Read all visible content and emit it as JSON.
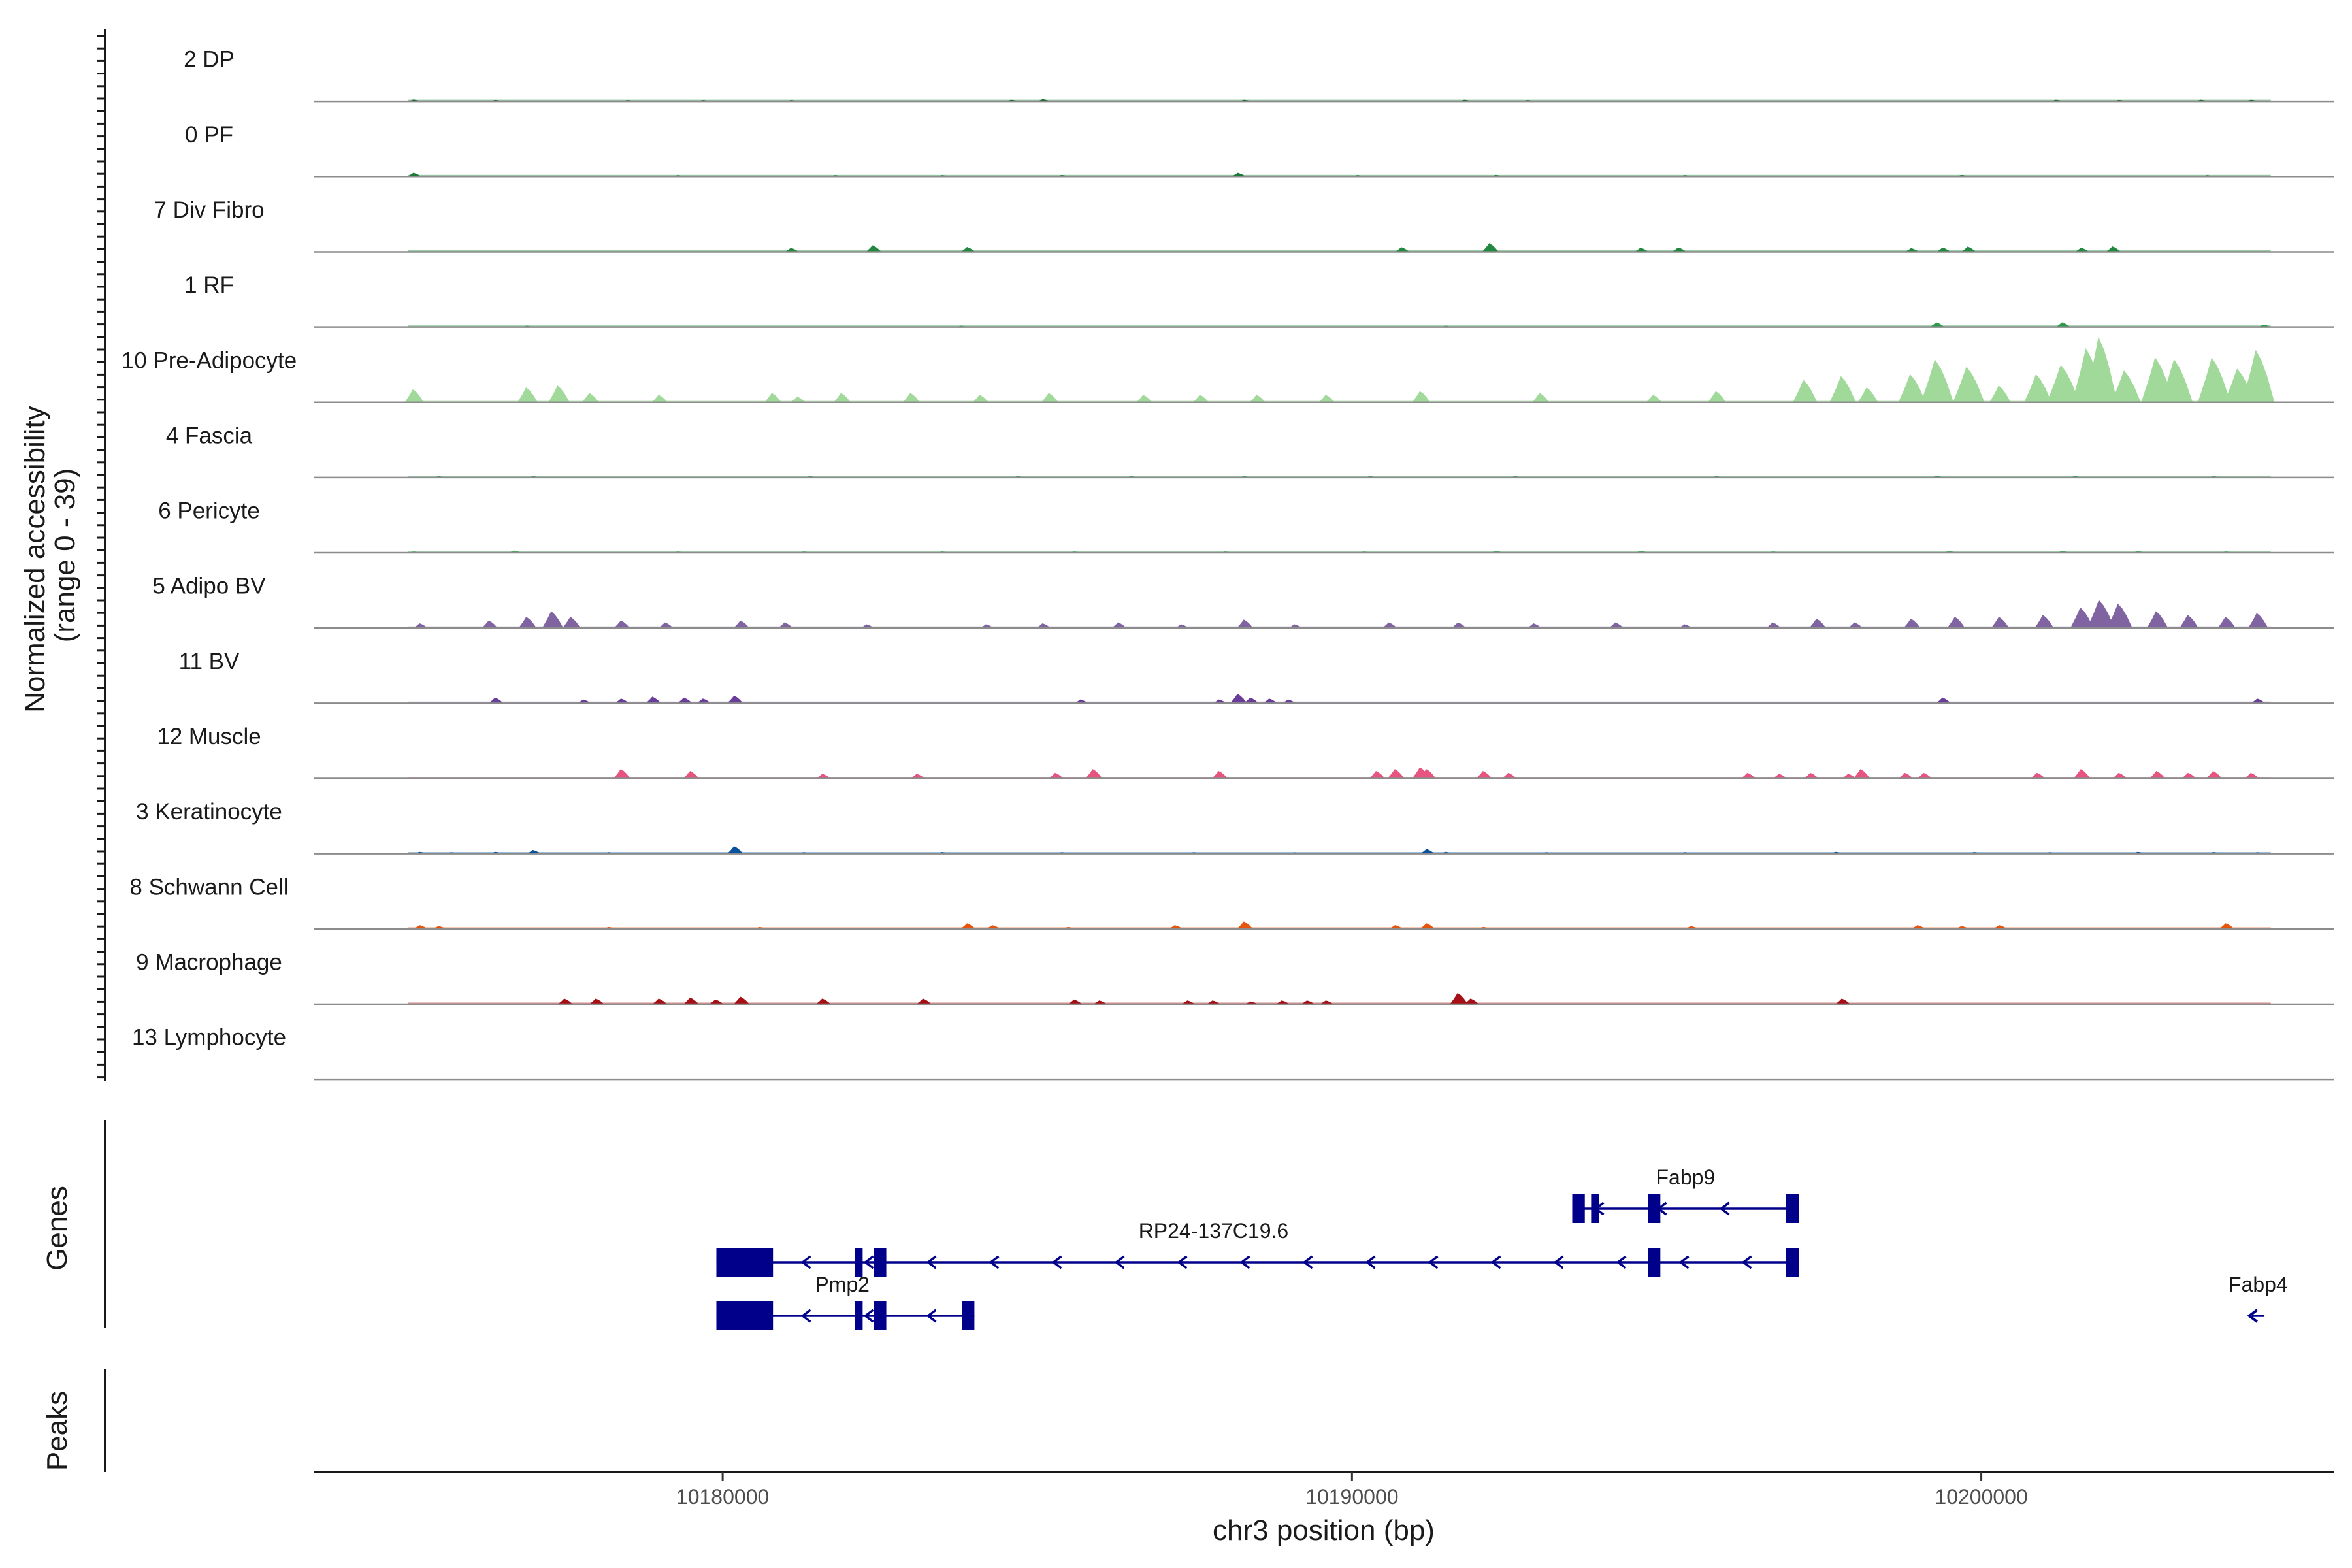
{
  "chart_data": {
    "type": "area",
    "title": "",
    "ylabel": "Normalized accessibility\n(range 0 - 39)",
    "y_range": [
      0,
      39
    ],
    "xlabel": "chr3 position (bp)",
    "x_range": [
      10173500,
      10205600
    ],
    "x_ticks": [
      10180000,
      10190000,
      10200000
    ],
    "x_tick_labels": [
      "10180000",
      "10190000",
      "10200000"
    ],
    "coverage_x_range": [
      10175000,
      10204600
    ],
    "series": [
      {
        "name": "2 DP",
        "color": "#1b6b2f",
        "peaks": [
          [
            10175100,
            1.0
          ],
          [
            10176400,
            0.8
          ],
          [
            10178500,
            0.6
          ],
          [
            10179700,
            0.6
          ],
          [
            10181100,
            0.5
          ],
          [
            10184600,
            0.9
          ],
          [
            10185100,
            1.2
          ],
          [
            10188300,
            0.9
          ],
          [
            10191800,
            0.9
          ],
          [
            10192800,
            0.6
          ],
          [
            10201200,
            0.9
          ],
          [
            10202200,
            0.8
          ],
          [
            10203500,
            0.9
          ],
          [
            10204300,
            0.9
          ]
        ]
      },
      {
        "name": "0 PF",
        "color": "#1f7a3a",
        "peaks": [
          [
            10175100,
            2.0
          ],
          [
            10179300,
            0.6
          ],
          [
            10181800,
            0.7
          ],
          [
            10183500,
            0.7
          ],
          [
            10185400,
            0.8
          ],
          [
            10188200,
            2.0
          ],
          [
            10190100,
            0.6
          ],
          [
            10192300,
            0.8
          ],
          [
            10195300,
            0.6
          ],
          [
            10199700,
            0.8
          ],
          [
            10203600,
            0.7
          ]
        ]
      },
      {
        "name": "7 Div Fibro",
        "color": "#23883f",
        "peaks": [
          [
            10181100,
            2.1
          ],
          [
            10182400,
            3.5
          ],
          [
            10183900,
            2.6
          ],
          [
            10190800,
            2.5
          ],
          [
            10192200,
            4.6
          ],
          [
            10194600,
            2.2
          ],
          [
            10195200,
            2.4
          ],
          [
            10198900,
            2.0
          ],
          [
            10199400,
            2.3
          ],
          [
            10199800,
            2.8
          ],
          [
            10201600,
            2.2
          ],
          [
            10202100,
            2.9
          ]
        ]
      },
      {
        "name": "1 RF",
        "color": "#2e9a4c",
        "peaks": [
          [
            10176900,
            0.6
          ],
          [
            10183800,
            0.5
          ],
          [
            10191500,
            0.6
          ],
          [
            10199300,
            2.5
          ],
          [
            10201300,
            2.5
          ],
          [
            10204500,
            1.3
          ]
        ]
      },
      {
        "name": "10 Pre-Adipocyte",
        "color": "#a1d99b",
        "peaks": [
          [
            10175100,
            7
          ],
          [
            10176900,
            8
          ],
          [
            10177400,
            9
          ],
          [
            10177900,
            5
          ],
          [
            10179000,
            4
          ],
          [
            10180800,
            5
          ],
          [
            10181200,
            3
          ],
          [
            10181900,
            5
          ],
          [
            10183000,
            5
          ],
          [
            10184100,
            4
          ],
          [
            10185200,
            5
          ],
          [
            10186700,
            4
          ],
          [
            10187600,
            4
          ],
          [
            10188500,
            4
          ],
          [
            10189600,
            4
          ],
          [
            10191100,
            6
          ],
          [
            10193000,
            5
          ],
          [
            10194800,
            4
          ],
          [
            10195800,
            6
          ],
          [
            10197200,
            12
          ],
          [
            10197800,
            14
          ],
          [
            10198200,
            8
          ],
          [
            10198900,
            15
          ],
          [
            10199300,
            23
          ],
          [
            10199800,
            19
          ],
          [
            10200300,
            9
          ],
          [
            10200900,
            15
          ],
          [
            10201300,
            20
          ],
          [
            10201700,
            29
          ],
          [
            10201900,
            35
          ],
          [
            10202300,
            17
          ],
          [
            10202800,
            24
          ],
          [
            10203100,
            23
          ],
          [
            10203700,
            24
          ],
          [
            10204100,
            18
          ],
          [
            10204400,
            28
          ]
        ]
      },
      {
        "name": "4 Fascia",
        "color": "#2a9450",
        "peaks": [
          [
            10175500,
            0.5
          ],
          [
            10177000,
            0.4
          ],
          [
            10181400,
            0.5
          ],
          [
            10184700,
            0.6
          ],
          [
            10186500,
            0.5
          ],
          [
            10188300,
            0.6
          ],
          [
            10190300,
            0.5
          ],
          [
            10192600,
            0.5
          ],
          [
            10195800,
            0.5
          ],
          [
            10199300,
            0.9
          ],
          [
            10201500,
            0.8
          ],
          [
            10203700,
            0.6
          ]
        ]
      },
      {
        "name": "6 Pericyte",
        "color": "#41ab5d",
        "peaks": [
          [
            10175100,
            0.5
          ],
          [
            10176700,
            1.2
          ],
          [
            10179300,
            0.5
          ],
          [
            10181300,
            0.6
          ],
          [
            10183500,
            0.6
          ],
          [
            10185600,
            0.5
          ],
          [
            10188000,
            0.6
          ],
          [
            10190200,
            0.6
          ],
          [
            10192300,
            1.0
          ],
          [
            10194600,
            1.1
          ],
          [
            10196700,
            0.7
          ],
          [
            10199500,
            1.0
          ],
          [
            10201300,
            1.0
          ],
          [
            10202500,
            0.9
          ],
          [
            10203900,
            0.7
          ]
        ]
      },
      {
        "name": "5 Adipo BV",
        "color": "#8064a2",
        "peaks": [
          [
            10175200,
            2.5
          ],
          [
            10176300,
            4
          ],
          [
            10176900,
            6
          ],
          [
            10177300,
            9
          ],
          [
            10177600,
            6
          ],
          [
            10178400,
            4
          ],
          [
            10179100,
            3
          ],
          [
            10180300,
            4
          ],
          [
            10181000,
            3
          ],
          [
            10182300,
            2
          ],
          [
            10184200,
            2
          ],
          [
            10185100,
            2.5
          ],
          [
            10186300,
            3
          ],
          [
            10187300,
            2
          ],
          [
            10188300,
            4.5
          ],
          [
            10189100,
            2
          ],
          [
            10190600,
            3
          ],
          [
            10191700,
            3
          ],
          [
            10192900,
            2.5
          ],
          [
            10194200,
            3
          ],
          [
            10195300,
            2
          ],
          [
            10196700,
            3
          ],
          [
            10197400,
            5
          ],
          [
            10198000,
            3
          ],
          [
            10198900,
            5
          ],
          [
            10199600,
            6
          ],
          [
            10200300,
            6
          ],
          [
            10201000,
            7
          ],
          [
            10201600,
            11
          ],
          [
            10201900,
            15
          ],
          [
            10202200,
            13
          ],
          [
            10202800,
            9
          ],
          [
            10203300,
            7
          ],
          [
            10203900,
            6
          ],
          [
            10204400,
            8
          ]
        ]
      },
      {
        "name": "11 BV",
        "color": "#6a3d9a",
        "peaks": [
          [
            10176400,
            3
          ],
          [
            10177800,
            2
          ],
          [
            10178400,
            2.5
          ],
          [
            10178900,
            3.5
          ],
          [
            10179400,
            3
          ],
          [
            10179700,
            2.5
          ],
          [
            10180200,
            4
          ],
          [
            10185700,
            2
          ],
          [
            10187900,
            2
          ],
          [
            10188200,
            5
          ],
          [
            10188400,
            3
          ],
          [
            10188700,
            2.5
          ],
          [
            10189000,
            2
          ],
          [
            10199400,
            3
          ],
          [
            10204400,
            2.5
          ]
        ]
      },
      {
        "name": "12 Muscle",
        "color": "#e75480",
        "peaks": [
          [
            10178400,
            5
          ],
          [
            10179500,
            4
          ],
          [
            10181600,
            2.5
          ],
          [
            10183100,
            2.5
          ],
          [
            10185300,
            3
          ],
          [
            10185900,
            5
          ],
          [
            10187900,
            4
          ],
          [
            10190400,
            4
          ],
          [
            10190700,
            5
          ],
          [
            10191100,
            6
          ],
          [
            10191200,
            5
          ],
          [
            10192100,
            4
          ],
          [
            10192500,
            3
          ],
          [
            10196300,
            3
          ],
          [
            10196800,
            2.5
          ],
          [
            10197300,
            3
          ],
          [
            10197900,
            2.5
          ],
          [
            10198100,
            5
          ],
          [
            10198800,
            3
          ],
          [
            10199100,
            3
          ],
          [
            10200900,
            3
          ],
          [
            10201600,
            5
          ],
          [
            10202200,
            3
          ],
          [
            10202800,
            4
          ],
          [
            10203300,
            3
          ],
          [
            10203700,
            4
          ],
          [
            10204300,
            3
          ]
        ]
      },
      {
        "name": "3 Keratinocyte",
        "color": "#08519c",
        "peaks": [
          [
            10175200,
            1
          ],
          [
            10175700,
            0.8
          ],
          [
            10176400,
            1
          ],
          [
            10177000,
            2
          ],
          [
            10178200,
            0.8
          ],
          [
            10180200,
            4
          ],
          [
            10181300,
            0.8
          ],
          [
            10183500,
            0.9
          ],
          [
            10185400,
            0.8
          ],
          [
            10187500,
            0.8
          ],
          [
            10189100,
            0.7
          ],
          [
            10191200,
            2.5
          ],
          [
            10191500,
            1
          ],
          [
            10193100,
            0.8
          ],
          [
            10195300,
            0.8
          ],
          [
            10197700,
            1
          ],
          [
            10199900,
            0.9
          ],
          [
            10201100,
            0.8
          ],
          [
            10202500,
            1
          ],
          [
            10203700,
            0.9
          ],
          [
            10204400,
            0.8
          ]
        ]
      },
      {
        "name": "8 Schwann Cell",
        "color": "#e6550d",
        "peaks": [
          [
            10175200,
            2
          ],
          [
            10175500,
            1.5
          ],
          [
            10178200,
            1
          ],
          [
            10180600,
            1
          ],
          [
            10183900,
            3
          ],
          [
            10184300,
            2
          ],
          [
            10185500,
            1
          ],
          [
            10187200,
            2
          ],
          [
            10188300,
            4
          ],
          [
            10190700,
            2
          ],
          [
            10191200,
            3
          ],
          [
            10192100,
            1
          ],
          [
            10195400,
            1.5
          ],
          [
            10199000,
            2
          ],
          [
            10199700,
            1.5
          ],
          [
            10200300,
            2
          ],
          [
            10203900,
            3
          ]
        ]
      },
      {
        "name": "9 Macrophage",
        "color": "#a50f15",
        "peaks": [
          [
            10177500,
            3
          ],
          [
            10178000,
            3
          ],
          [
            10179000,
            3
          ],
          [
            10179500,
            3.5
          ],
          [
            10179900,
            2.5
          ],
          [
            10180300,
            4
          ],
          [
            10181600,
            3
          ],
          [
            10183200,
            3
          ],
          [
            10185600,
            2.5
          ],
          [
            10186000,
            2
          ],
          [
            10187400,
            2
          ],
          [
            10187800,
            2
          ],
          [
            10188400,
            1.5
          ],
          [
            10188900,
            2
          ],
          [
            10189300,
            2
          ],
          [
            10189600,
            2
          ],
          [
            10191700,
            6
          ],
          [
            10191900,
            3
          ],
          [
            10197800,
            3
          ]
        ]
      },
      {
        "name": "13 Lymphocyte",
        "color": "#555555",
        "peaks": []
      }
    ],
    "genes_title": "Genes",
    "genes": [
      {
        "name": "Fabp9",
        "strand": "-",
        "start": 10193500,
        "end": 10197000,
        "exons": [
          [
            10193500,
            10193700
          ],
          [
            10193800,
            10193900
          ],
          [
            10194700,
            10194900
          ],
          [
            10196900,
            10197100
          ]
        ]
      },
      {
        "name": "RP24-137C19.6",
        "strand": "-",
        "start": 10179900,
        "end": 10197000,
        "exons": [
          [
            10179900,
            10180800
          ],
          [
            10182100,
            10182200
          ],
          [
            10182400,
            10182600
          ],
          [
            10194700,
            10194900
          ],
          [
            10196900,
            10197100
          ]
        ]
      },
      {
        "name": "Pmp2",
        "strand": "-",
        "start": 10179900,
        "end": 10184000,
        "exons": [
          [
            10179900,
            10180800
          ],
          [
            10182100,
            10182200
          ],
          [
            10182400,
            10182600
          ],
          [
            10183800,
            10184000
          ]
        ]
      },
      {
        "name": "Fabp4",
        "strand": "-",
        "start": 10204300,
        "end": 10204500,
        "exons": []
      }
    ],
    "peaks_title": "Peaks",
    "peaks_track": []
  }
}
